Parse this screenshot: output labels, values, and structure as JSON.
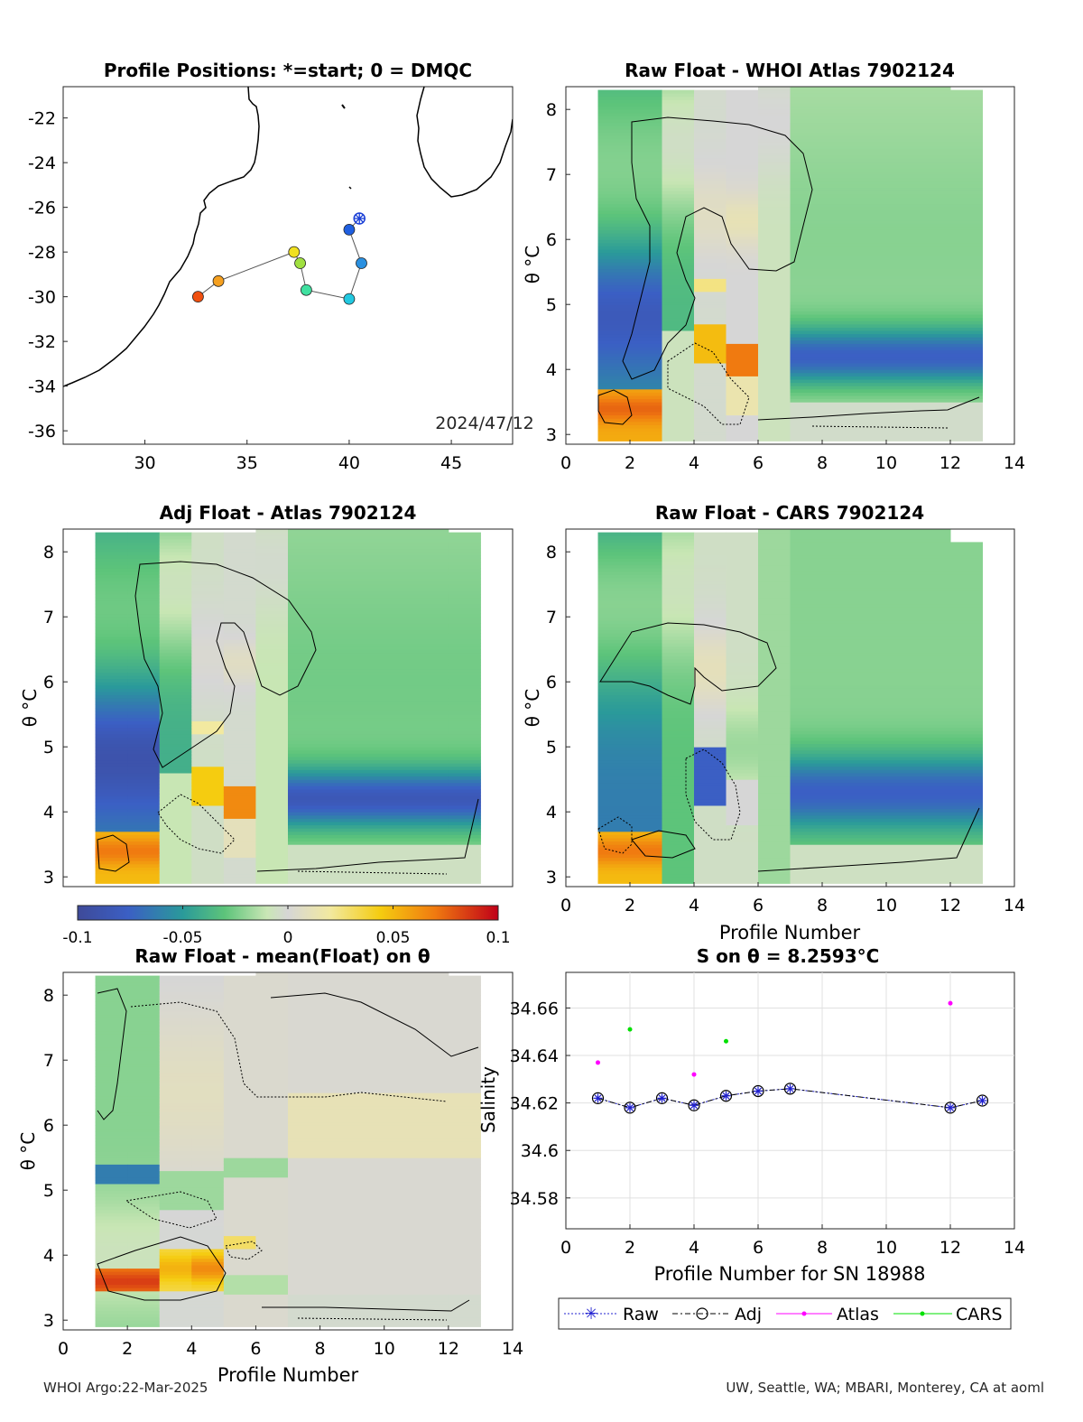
{
  "footer": {
    "left": "WHOI Argo:22-Mar-2025",
    "right": "UW, Seattle, WA; MBARI, Monterey, CA at aoml"
  },
  "colors": {
    "coast": "#000000",
    "raw_marker": "#2020d0",
    "adj_marker": "#000000",
    "atlas": "#ff00ff",
    "cars": "#00e000",
    "grid": "#e0e0e0"
  },
  "chart_data": [
    {
      "id": "map",
      "type": "scatter",
      "title": "Profile Positions: *=start; 0 = DMQC",
      "xlim": [
        26,
        48
      ],
      "ylim": [
        -36.6,
        -20.6
      ],
      "xticks": [
        30,
        35,
        40,
        45
      ],
      "yticks": [
        -22,
        -24,
        -26,
        -28,
        -30,
        -32,
        -34,
        -36
      ],
      "annotation": "2024/47/12",
      "track": [
        {
          "lon": 40.5,
          "lat": -26.5,
          "marker": "start",
          "color": "#1a3fd6"
        },
        {
          "lon": 40.0,
          "lat": -27.0,
          "color": "#1f5fe0"
        },
        {
          "lon": 40.6,
          "lat": -28.5,
          "color": "#2a90e0"
        },
        {
          "lon": 40.0,
          "lat": -30.1,
          "color": "#22c8e0"
        },
        {
          "lon": 37.9,
          "lat": -29.7,
          "color": "#40e0a0"
        },
        {
          "lon": 37.6,
          "lat": -28.5,
          "color": "#a0e040"
        },
        {
          "lon": 37.3,
          "lat": -28.0,
          "color": "#f0e020"
        },
        {
          "lon": 33.6,
          "lat": -29.3,
          "color": "#f5a020"
        },
        {
          "lon": 32.6,
          "lat": -30.0,
          "color": "#f05010"
        }
      ]
    },
    {
      "id": "raw_whoi",
      "type": "heatmap",
      "title": "Raw Float - WHOI Atlas  7902124",
      "ylabel": "θ °C",
      "xlim": [
        0,
        14
      ],
      "ylim": [
        2.85,
        8.35
      ],
      "xticks": [
        0,
        2,
        4,
        6,
        8,
        10,
        12,
        14
      ],
      "yticks": [
        3,
        4,
        5,
        6,
        7,
        8
      ]
    },
    {
      "id": "adj_atlas",
      "type": "heatmap",
      "title": "Adj Float - Atlas  7902124",
      "ylabel": "θ °C",
      "xlim": [
        0,
        14
      ],
      "ylim": [
        2.85,
        8.35
      ],
      "xticks": [],
      "yticks": [
        3,
        4,
        5,
        6,
        7,
        8
      ]
    },
    {
      "id": "raw_cars",
      "type": "heatmap",
      "title": "Raw Float - CARS  7902124",
      "ylabel": "θ °C",
      "xlabel": "Profile Number",
      "xlim": [
        0,
        14
      ],
      "ylim": [
        2.85,
        8.35
      ],
      "xticks": [
        0,
        2,
        4,
        6,
        8,
        10,
        12,
        14
      ],
      "yticks": [
        3,
        4,
        5,
        6,
        7,
        8
      ]
    },
    {
      "id": "raw_mean",
      "type": "heatmap",
      "title": "Raw Float - mean(Float) on θ",
      "ylabel": "θ °C",
      "xlabel": "Profile Number",
      "xlim": [
        0,
        14
      ],
      "ylim": [
        2.85,
        8.35
      ],
      "xticks": [
        0,
        2,
        4,
        6,
        8,
        10,
        12,
        14
      ],
      "yticks": [
        3,
        4,
        5,
        6,
        7,
        8
      ]
    },
    {
      "id": "colorbar",
      "type": "heatmap",
      "clim": [
        -0.1,
        0.1
      ],
      "ticks": [
        "-0.1",
        "-0.05",
        "0",
        "0.05",
        "0.1"
      ]
    },
    {
      "id": "salinity",
      "type": "line",
      "title": "S on θ = 8.2593°C",
      "ylabel": "Salinity",
      "xlabel": "Profile Number for SN 18988",
      "xlim": [
        0,
        14
      ],
      "ylim": [
        34.567,
        34.675
      ],
      "xticks": [
        0,
        2,
        4,
        6,
        8,
        10,
        12,
        14
      ],
      "yticks": [
        34.58,
        34.6,
        34.62,
        34.64,
        34.66
      ],
      "grid": true,
      "legend_position": "bottom",
      "series": [
        {
          "name": "Raw",
          "x": [
            1,
            2,
            3,
            4,
            5,
            6,
            7,
            12,
            13
          ],
          "y": [
            34.622,
            34.618,
            34.622,
            34.619,
            34.623,
            34.625,
            34.626,
            34.618,
            34.621
          ]
        },
        {
          "name": "Adj",
          "x": [
            1,
            2,
            3,
            4,
            5,
            6,
            7,
            12,
            13
          ],
          "y": [
            34.622,
            34.618,
            34.622,
            34.619,
            34.623,
            34.625,
            34.626,
            34.618,
            34.621
          ]
        },
        {
          "name": "Atlas",
          "x": [
            1,
            4,
            12
          ],
          "y": [
            34.637,
            34.632,
            34.662
          ]
        },
        {
          "name": "CARS",
          "x": [
            2,
            5
          ],
          "y": [
            34.651,
            34.646
          ]
        }
      ]
    }
  ]
}
